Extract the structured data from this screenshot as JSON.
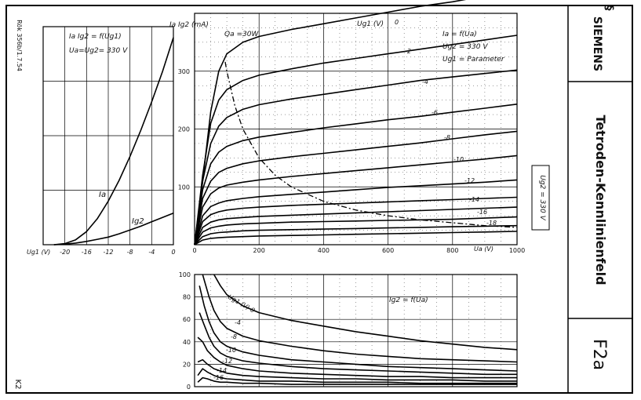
{
  "sheet": {
    "brand": "SIEMENS",
    "title": "Tetroden-Kennlinienfeld",
    "sheet_code": "F2a",
    "side_code": "Rök 356b/1.7.54",
    "corner_code": "K2",
    "ug2_box": "Ug2 = 330 V"
  },
  "chart_data": [
    {
      "id": "transfer",
      "type": "line",
      "annotations": [
        "Ia Ig2 = f(Ug1)",
        "Ua=Ug2= 330 V"
      ],
      "xlabel": "Ug1 (V)",
      "x_ticks": [
        -20,
        -16,
        -12,
        -8,
        -4,
        0
      ],
      "xlim": [
        -24,
        0
      ],
      "ylim": [
        0,
        400
      ],
      "grid": true,
      "series": [
        {
          "name": "Ia",
          "x": [
            -22,
            -20,
            -18,
            -16,
            -14,
            -12,
            -10,
            -8,
            -6,
            -4,
            -2,
            0
          ],
          "values": [
            0,
            2,
            9,
            24,
            48,
            80,
            118,
            162,
            210,
            262,
            318,
            380
          ]
        },
        {
          "name": "Ig2",
          "x": [
            -22,
            -20,
            -18,
            -16,
            -14,
            -12,
            -10,
            -8,
            -6,
            -4,
            -2,
            0
          ],
          "values": [
            0,
            1,
            3,
            6,
            10,
            14,
            20,
            27,
            34,
            42,
            50,
            58
          ]
        }
      ]
    },
    {
      "id": "anode",
      "type": "line",
      "annotations": [
        "Ia = f(Ua)",
        "Ug2 = 330 V",
        "Ug1 = Parameter",
        "Qa =30W",
        "Ug1 (V)"
      ],
      "xlabel": "Ua (V)",
      "ylabel": "Ia Ig2 (mA)",
      "x_ticks": [
        0,
        200,
        400,
        600,
        800,
        1000
      ],
      "y_ticks": [
        100,
        200,
        300
      ],
      "xlim": [
        0,
        1000
      ],
      "ylim": [
        0,
        400
      ],
      "grid": true,
      "series": [
        {
          "name": "0",
          "x": [
            0,
            25,
            50,
            75,
            100,
            150,
            200,
            300,
            400,
            500,
            600,
            700,
            800,
            900,
            1000
          ],
          "values": [
            0,
            110,
            230,
            300,
            330,
            350,
            360,
            372,
            382,
            392,
            402,
            412,
            420,
            430,
            440
          ]
        },
        {
          "name": "-2",
          "x": [
            0,
            25,
            50,
            75,
            100,
            150,
            200,
            300,
            400,
            500,
            600,
            700,
            800,
            900,
            1000
          ],
          "values": [
            0,
            120,
            210,
            250,
            268,
            284,
            293,
            304,
            314,
            322,
            330,
            338,
            346,
            354,
            362
          ]
        },
        {
          "name": "-4",
          "x": [
            0,
            25,
            50,
            75,
            100,
            150,
            200,
            300,
            400,
            500,
            600,
            700,
            800,
            900,
            1000
          ],
          "values": [
            0,
            110,
            175,
            205,
            220,
            234,
            242,
            252,
            260,
            268,
            276,
            284,
            290,
            296,
            302
          ]
        },
        {
          "name": "-6",
          "x": [
            0,
            25,
            50,
            75,
            100,
            150,
            200,
            300,
            400,
            500,
            600,
            700,
            800,
            900,
            1000
          ],
          "values": [
            0,
            95,
            140,
            160,
            170,
            180,
            186,
            194,
            202,
            209,
            216,
            222,
            229,
            236,
            243
          ]
        },
        {
          "name": "-8",
          "x": [
            0,
            25,
            50,
            75,
            100,
            150,
            200,
            300,
            400,
            500,
            600,
            700,
            800,
            900,
            1000
          ],
          "values": [
            0,
            80,
            110,
            125,
            132,
            140,
            145,
            152,
            158,
            164,
            170,
            176,
            183,
            190,
            196
          ]
        },
        {
          "name": "-10",
          "x": [
            0,
            25,
            50,
            75,
            100,
            150,
            200,
            300,
            400,
            500,
            600,
            700,
            800,
            900,
            1000
          ],
          "values": [
            0,
            65,
            88,
            98,
            103,
            108,
            112,
            118,
            123,
            128,
            133,
            138,
            143,
            148,
            154
          ]
        },
        {
          "name": "-12",
          "x": [
            0,
            25,
            50,
            75,
            100,
            150,
            200,
            300,
            400,
            500,
            600,
            700,
            800,
            900,
            1000
          ],
          "values": [
            0,
            50,
            66,
            72,
            76,
            80,
            83,
            87,
            91,
            95,
            99,
            102,
            105,
            108,
            112
          ]
        },
        {
          "name": "",
          "x": [
            0,
            25,
            50,
            75,
            100,
            150,
            200,
            300,
            400,
            500,
            600,
            700,
            800,
            900,
            1000
          ],
          "values": [
            0,
            40,
            52,
            57,
            60,
            63,
            65,
            68,
            70,
            72,
            74,
            76,
            78,
            80,
            82
          ]
        },
        {
          "name": "-14",
          "x": [
            0,
            25,
            50,
            75,
            100,
            150,
            200,
            300,
            400,
            500,
            600,
            700,
            800,
            900,
            1000
          ],
          "values": [
            0,
            30,
            39,
            43,
            45,
            47,
            49,
            51,
            53,
            55,
            57,
            59,
            61,
            63,
            65
          ]
        },
        {
          "name": "-16",
          "x": [
            0,
            25,
            50,
            75,
            100,
            150,
            200,
            300,
            400,
            500,
            600,
            700,
            800,
            900,
            1000
          ],
          "values": [
            0,
            22,
            29,
            32,
            34,
            36,
            37,
            39,
            40,
            41,
            42,
            43,
            44,
            46,
            48
          ]
        },
        {
          "name": "-18",
          "x": [
            0,
            25,
            50,
            75,
            100,
            150,
            200,
            300,
            400,
            500,
            600,
            700,
            800,
            900,
            1000
          ],
          "values": [
            0,
            14,
            19,
            21,
            22,
            24,
            25,
            26,
            27,
            28,
            29,
            30,
            31,
            32,
            33
          ]
        },
        {
          "name": "",
          "x": [
            0,
            25,
            50,
            75,
            100,
            150,
            200,
            300,
            400,
            500,
            600,
            700,
            800,
            900,
            1000
          ],
          "values": [
            0,
            8,
            11,
            12,
            13,
            14,
            15,
            16,
            17,
            18,
            19,
            20,
            21,
            22,
            23
          ]
        }
      ],
      "limit_curve": {
        "name": "Qa =30W",
        "x": [
          95,
          100,
          125,
          150,
          200,
          250,
          300,
          400,
          500,
          600,
          700,
          800,
          900,
          1000
        ],
        "values": [
          316,
          300,
          240,
          200,
          150,
          120,
          100,
          75,
          60,
          50,
          43,
          38,
          33,
          30
        ]
      }
    },
    {
      "id": "screen",
      "type": "line",
      "annotations": [
        "Ig2 = f(Ua)",
        "Ug1 (V) 0"
      ],
      "y_ticks": [
        0,
        20,
        40,
        60,
        80,
        100
      ],
      "xlim": [
        0,
        1000
      ],
      "ylim": [
        0,
        100
      ],
      "grid": true,
      "series": [
        {
          "name": "0",
          "x": [
            20,
            40,
            60,
            80,
            100,
            150,
            200,
            300,
            400,
            500,
            600,
            700,
            800,
            900,
            1000
          ],
          "values": [
            125,
            110,
            100,
            90,
            82,
            72,
            66,
            59,
            54,
            49,
            45,
            41,
            38,
            35,
            33
          ]
        },
        {
          "name": "-4",
          "x": [
            15,
            30,
            45,
            60,
            80,
            100,
            150,
            200,
            300,
            400,
            500,
            600,
            700,
            800,
            900,
            1000
          ],
          "values": [
            110,
            95,
            80,
            68,
            58,
            52,
            45,
            41,
            36,
            32,
            29,
            27,
            25,
            24,
            23,
            22
          ]
        },
        {
          "name": "-8",
          "x": [
            15,
            30,
            45,
            60,
            80,
            100,
            150,
            200,
            300,
            400,
            500,
            600,
            700,
            800,
            900,
            1000
          ],
          "values": [
            90,
            72,
            58,
            48,
            40,
            36,
            31,
            28,
            24,
            22,
            20,
            18,
            17,
            16,
            15,
            14
          ]
        },
        {
          "name": "-10",
          "x": [
            15,
            30,
            45,
            60,
            80,
            100,
            150,
            200,
            300,
            400,
            500,
            600,
            700,
            800,
            900,
            1000
          ],
          "values": [
            66,
            55,
            44,
            36,
            30,
            27,
            23,
            21,
            18,
            16,
            15,
            14,
            13,
            12,
            11,
            11
          ]
        },
        {
          "name": "-12",
          "x": [
            10,
            25,
            40,
            60,
            80,
            100,
            150,
            200,
            300,
            400,
            500,
            600,
            700,
            800,
            900,
            1000
          ],
          "values": [
            44,
            40,
            32,
            26,
            22,
            19,
            16,
            14,
            12,
            11,
            10,
            9,
            9,
            8,
            8,
            8
          ]
        },
        {
          "name": "-14",
          "x": [
            10,
            25,
            40,
            60,
            80,
            100,
            150,
            200,
            300,
            400,
            500,
            600,
            700,
            800,
            900,
            1000
          ],
          "values": [
            22,
            24,
            20,
            16,
            14,
            12,
            10,
            9,
            8,
            7,
            7,
            6,
            6,
            6,
            5,
            5
          ]
        },
        {
          "name": "-16",
          "x": [
            10,
            25,
            40,
            60,
            80,
            100,
            150,
            200,
            300,
            400,
            500,
            600,
            700,
            800,
            900,
            1000
          ],
          "values": [
            10,
            16,
            13,
            10,
            8,
            7,
            6,
            5,
            5,
            4,
            4,
            4,
            3,
            3,
            3,
            3
          ]
        },
        {
          "name": "",
          "x": [
            10,
            25,
            40,
            60,
            80,
            100,
            150,
            200,
            300,
            400,
            500,
            600,
            700,
            800,
            900,
            1000
          ],
          "values": [
            4,
            8,
            7,
            5,
            4,
            4,
            3,
            3,
            2,
            2,
            2,
            2,
            2,
            2,
            2,
            2
          ]
        }
      ]
    }
  ]
}
